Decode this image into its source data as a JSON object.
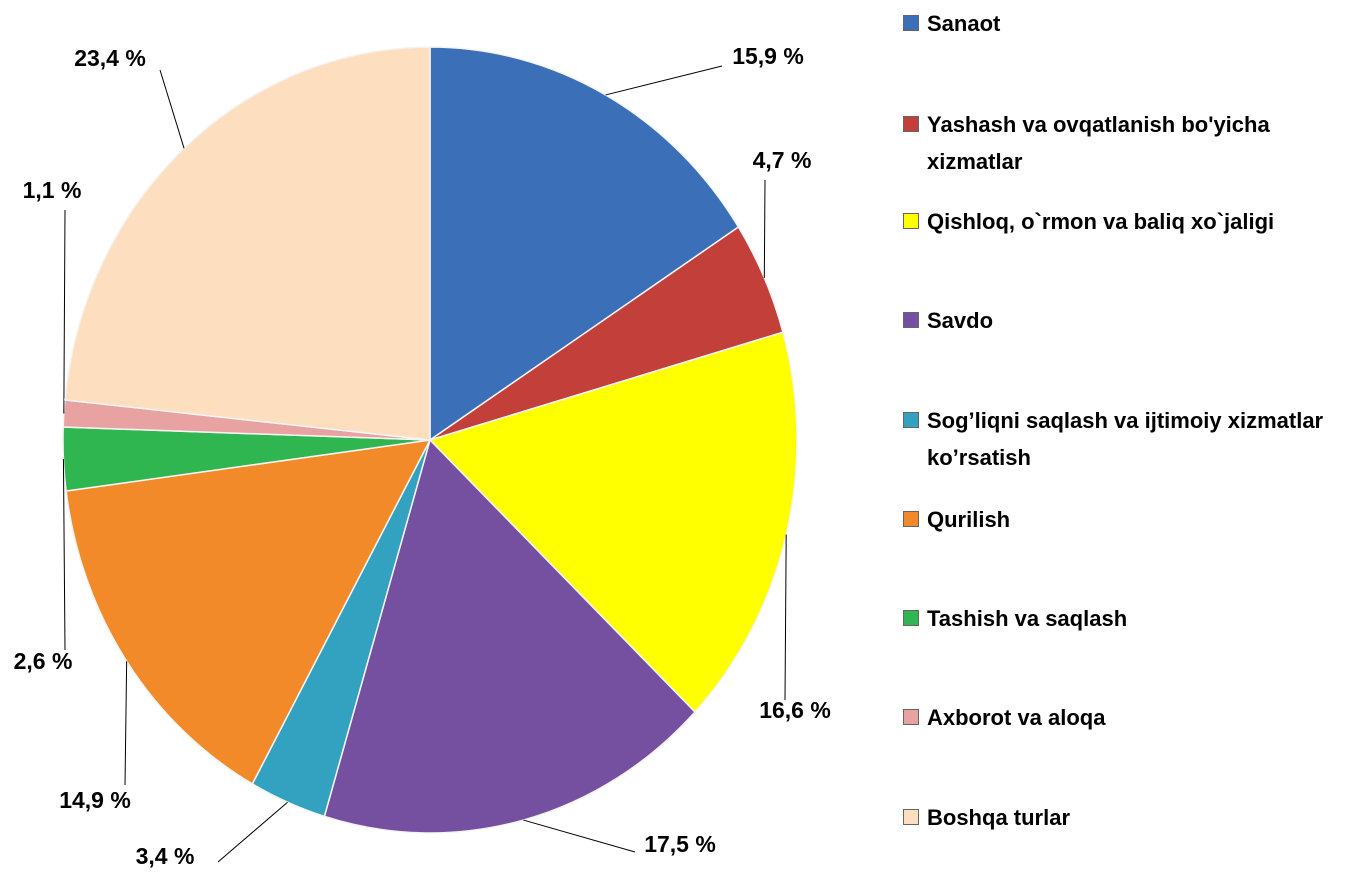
{
  "chart_data": {
    "type": "pie",
    "categories": [
      "Sanaot",
      "Yashash va ovqatlanish bo'yicha xizmatlar",
      "Qishloq, o`rmon va baliq xo`jaligi",
      "Savdo",
      "Sog’liqni saqlash va ijtimoiy xizmatlar ko’rsatish",
      "Qurilish",
      "Tashish va saqlash",
      "Axborot va aloqa",
      "Boshqa  turlar"
    ],
    "values": [
      15.9,
      4.7,
      16.6,
      17.5,
      3.4,
      14.9,
      2.6,
      1.1,
      23.4
    ],
    "value_labels": [
      "15,9 %",
      "4,7 %",
      "16,6 %",
      "17,5 %",
      "3,4 %",
      "14,9 %",
      "2,6 %",
      "1,1 %",
      "23,4 %"
    ],
    "colors": [
      "#3b70b8",
      "#c23f3a",
      "#ffff00",
      "#7650a0",
      "#32a2c0",
      "#f38a2a",
      "#2fb650",
      "#e9a2a2",
      "#fddfc0"
    ],
    "legend": "right"
  }
}
